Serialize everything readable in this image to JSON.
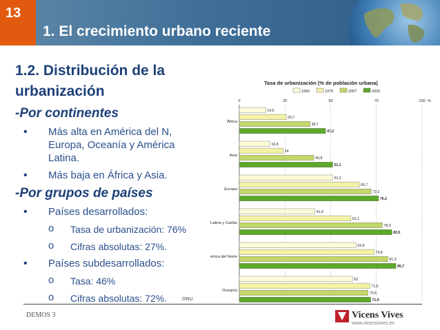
{
  "header": {
    "slide_number": "13",
    "title": "1. El crecimiento urbano reciente"
  },
  "left": {
    "heading": "1.2. Distribución de la urbanización",
    "continents_label": "-Por continentes",
    "continent_bullets": [
      "Más alta en América del N, Europa, Oceanía y América Latina.",
      "Más baja en África y Asia."
    ],
    "groups_label": "-Por grupos de países",
    "developed": "Países desarrollados:",
    "developed_items": [
      "Tasa de urbanización: 76%",
      "Cifras absolutas: 27%."
    ],
    "underdeveloped": "Países subdesarrollados:",
    "underdeveloped_items": [
      "Tasa: 46%",
      "Cifras absolutas: 72%."
    ]
  },
  "footer": {
    "left": "DEMOS 3",
    "brand": "Vicens Vives",
    "url": "www.vicensvives.es",
    "source": "ONU"
  },
  "chart_data": {
    "type": "bar",
    "orientation": "horizontal",
    "title": "Tasa de urbanización (% de población urbana)",
    "categories": [
      "África",
      "Asia",
      "Europa",
      "América Latina y Caribe",
      "América del Norte",
      "Oceanía"
    ],
    "series": [
      {
        "name": "1960",
        "color": "#fefcd8",
        "values": [
          14.5,
          16.8,
          51.2,
          41.4,
          63.9,
          62
        ]
      },
      {
        "name": "1975",
        "color": "#f3f2a6",
        "values": [
          25.7,
          24,
          65.7,
          61.1,
          73.8,
          71.5
        ]
      },
      {
        "name": "2007",
        "color": "#c3d86b",
        "values": [
          38.7,
          40.8,
          72.2,
          78.3,
          81.3,
          70.5
        ]
      },
      {
        "name": "2025",
        "color": "#5da92a",
        "values": [
          47.2,
          51.1,
          76.2,
          83.5,
          85.7,
          71.9
        ]
      }
    ],
    "value_labels": [
      [
        "14,5",
        "25,7",
        "38,7",
        "47,2"
      ],
      [
        "16,8",
        "24",
        "40,8",
        "51,1"
      ],
      [
        "51,2",
        "65,7",
        "72,2",
        "76,2"
      ],
      [
        "41,4",
        "61,1",
        "78,3",
        "83,5"
      ],
      [
        "63,9",
        "73,8",
        "81,3",
        "85,7"
      ],
      [
        "62",
        "71,5",
        "70,5",
        "71,9"
      ]
    ],
    "ticks": [
      "0",
      "25",
      "50",
      "75",
      "100"
    ],
    "unit": "%",
    "xlim": [
      0,
      100
    ],
    "legend_position": "top",
    "grid": true
  }
}
